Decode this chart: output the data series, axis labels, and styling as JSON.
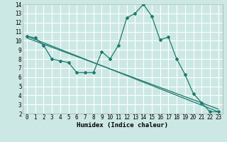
{
  "xlabel": "Humidex (Indice chaleur)",
  "xlim": [
    -0.5,
    23.5
  ],
  "ylim": [
    2,
    14
  ],
  "yticks": [
    2,
    3,
    4,
    5,
    6,
    7,
    8,
    9,
    10,
    11,
    12,
    13,
    14
  ],
  "xticks": [
    0,
    1,
    2,
    3,
    4,
    5,
    6,
    7,
    8,
    9,
    10,
    11,
    12,
    13,
    14,
    15,
    16,
    17,
    18,
    19,
    20,
    21,
    22,
    23
  ],
  "background_color": "#cce8e4",
  "line_color": "#1e7a6e",
  "grid_color": "#ffffff",
  "line1_x": [
    0,
    1,
    2,
    3,
    4,
    5,
    6,
    7,
    8,
    9,
    10,
    11,
    12,
    13,
    14,
    15,
    16,
    17,
    18,
    19,
    20,
    21,
    22,
    23
  ],
  "line1_y": [
    10.5,
    10.3,
    9.5,
    8.0,
    7.8,
    7.6,
    6.5,
    6.5,
    6.5,
    8.8,
    8.0,
    9.5,
    12.5,
    13.0,
    14.0,
    12.7,
    10.1,
    10.4,
    8.0,
    6.3,
    4.2,
    3.2,
    2.2,
    2.2
  ],
  "line2_y_start": 10.5,
  "line2_y_end": 2.2,
  "line3_y_start": 10.3,
  "line3_y_end": 2.5,
  "xlabel_fontsize": 6.5,
  "tick_fontsize": 5.5
}
